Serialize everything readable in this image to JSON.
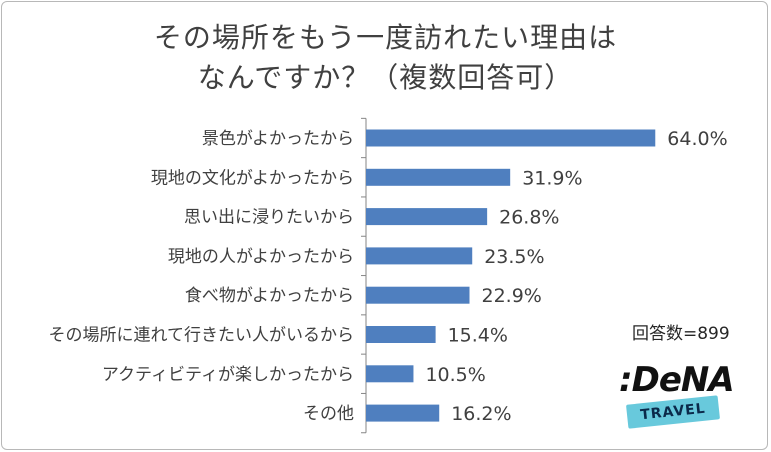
{
  "title": {
    "line1": "その場所をもう一度訪れたい理由は",
    "line2": "なんですか？（複数回答可）"
  },
  "note": "回答数=899",
  "logo": {
    "wordmark": ":DeNA",
    "tagline": "TRAVEL"
  },
  "chart_data": {
    "type": "bar",
    "orientation": "horizontal",
    "title": "その場所をもう一度訪れたい理由は なんですか？（複数回答可）",
    "categories": [
      "景色がよかったから",
      "現地の文化がよかったから",
      "思い出に浸りたいから",
      "現地の人がよかったから",
      "食べ物がよかったから",
      "その場所に連れて行きたい人がいるから",
      "アクティビティが楽しかったから",
      "その他"
    ],
    "values": [
      64.0,
      31.9,
      26.8,
      23.5,
      22.9,
      15.4,
      10.5,
      16.2
    ],
    "value_labels": [
      "64.0%",
      "31.9%",
      "26.8%",
      "23.5%",
      "22.9%",
      "15.4%",
      "10.5%",
      "16.2%"
    ],
    "unit": "%",
    "color": "#4f7fbf",
    "grid": false,
    "legend": "none"
  }
}
